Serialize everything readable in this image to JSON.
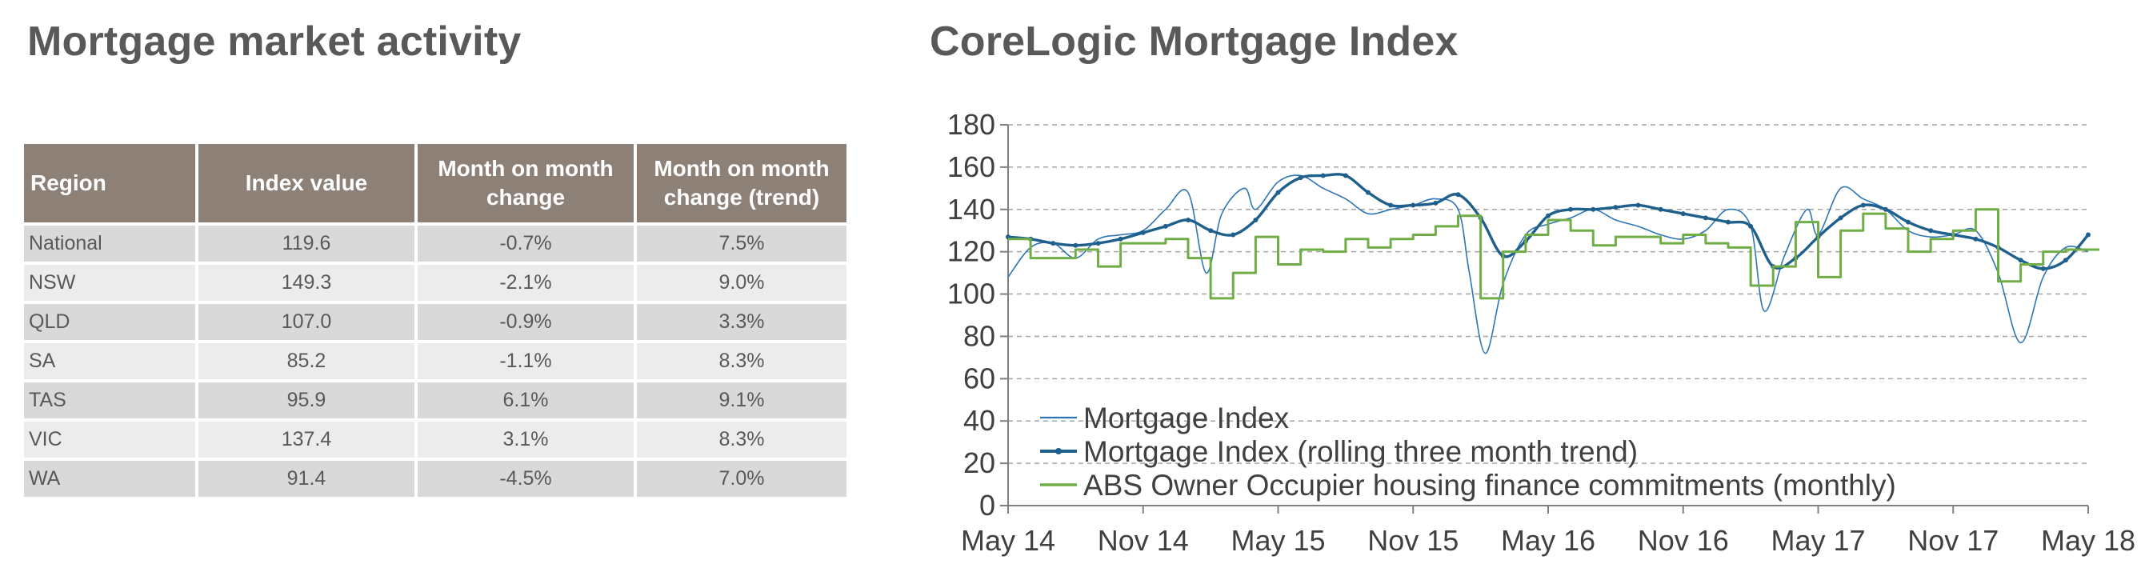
{
  "left_title": "Mortgage market activity",
  "right_title": "CoreLogic Mortgage Index",
  "colors": {
    "header_bg": "#8c8077",
    "row_dark": "#d9d9d9",
    "row_light": "#ececec",
    "title": "#595959",
    "series_index": "#2e75b6",
    "series_trend": "#1f5f8b",
    "series_abs": "#70ad47"
  },
  "table": {
    "headers": [
      "Region",
      "Index value",
      "Month on month change",
      "Month on month change (trend)"
    ],
    "rows": [
      {
        "region": "National",
        "index": "119.6",
        "mom": "-0.7%",
        "trend": "7.5%"
      },
      {
        "region": "NSW",
        "index": "149.3",
        "mom": "-2.1%",
        "trend": "9.0%"
      },
      {
        "region": "QLD",
        "index": "107.0",
        "mom": "-0.9%",
        "trend": "3.3%"
      },
      {
        "region": "SA",
        "index": "85.2",
        "mom": "-1.1%",
        "trend": "8.3%"
      },
      {
        "region": "TAS",
        "index": "95.9",
        "mom": "6.1%",
        "trend": "9.1%"
      },
      {
        "region": "VIC",
        "index": "137.4",
        "mom": "3.1%",
        "trend": "8.3%"
      },
      {
        "region": "WA",
        "index": "91.4",
        "mom": "-4.5%",
        "trend": "7.0%"
      }
    ]
  },
  "chart_data": {
    "type": "line",
    "title": "CoreLogic Mortgage Index",
    "x_tick_labels": [
      "May 14",
      "Nov 14",
      "May 15",
      "Nov 15",
      "May 16",
      "Nov 16",
      "May 17",
      "Nov 17",
      "May 18"
    ],
    "y_tick_labels": [
      "0",
      "20",
      "40",
      "60",
      "80",
      "100",
      "120",
      "140",
      "160",
      "180"
    ],
    "ylim": [
      0,
      180
    ],
    "xlim_months": [
      0,
      48
    ],
    "grid": "horizontal dashed",
    "legend_position": "bottom-left",
    "series": [
      {
        "name": "Mortgage Index",
        "points": [
          [
            0,
            108
          ],
          [
            1,
            122
          ],
          [
            2,
            124
          ],
          [
            3,
            117
          ],
          [
            4,
            126
          ],
          [
            5,
            128
          ],
          [
            6,
            130
          ],
          [
            7,
            140
          ],
          [
            8,
            148
          ],
          [
            8.8,
            110
          ],
          [
            9.5,
            138
          ],
          [
            10.5,
            150
          ],
          [
            11,
            140
          ],
          [
            12,
            153
          ],
          [
            13,
            156
          ],
          [
            14,
            150
          ],
          [
            15,
            145
          ],
          [
            16,
            138
          ],
          [
            17,
            140
          ],
          [
            18,
            142
          ],
          [
            19,
            145
          ],
          [
            20,
            140
          ],
          [
            20.5,
            110
          ],
          [
            21.2,
            72
          ],
          [
            22,
            105
          ],
          [
            23,
            128
          ],
          [
            24,
            133
          ],
          [
            25,
            136
          ],
          [
            26,
            140
          ],
          [
            27,
            135
          ],
          [
            28,
            132
          ],
          [
            29,
            128
          ],
          [
            30,
            126
          ],
          [
            31,
            130
          ],
          [
            32,
            140
          ],
          [
            33,
            132
          ],
          [
            33.6,
            92
          ],
          [
            34.5,
            118
          ],
          [
            35.5,
            140
          ],
          [
            36,
            128
          ],
          [
            37,
            150
          ],
          [
            38,
            145
          ],
          [
            39,
            140
          ],
          [
            40,
            130
          ],
          [
            41,
            127
          ],
          [
            42,
            128
          ],
          [
            43,
            130
          ],
          [
            44,
            110
          ],
          [
            45,
            77
          ],
          [
            46,
            108
          ],
          [
            47,
            122
          ],
          [
            48,
            120
          ]
        ]
      },
      {
        "name": "Mortgage Index (rolling three month trend)",
        "points": [
          [
            0,
            127
          ],
          [
            1,
            126
          ],
          [
            2,
            124
          ],
          [
            3,
            123
          ],
          [
            4,
            124
          ],
          [
            5,
            126
          ],
          [
            6,
            129
          ],
          [
            7,
            132
          ],
          [
            8,
            135
          ],
          [
            9,
            130
          ],
          [
            10,
            128
          ],
          [
            11,
            135
          ],
          [
            12,
            148
          ],
          [
            13,
            155
          ],
          [
            14,
            156
          ],
          [
            15,
            156
          ],
          [
            16,
            148
          ],
          [
            17,
            142
          ],
          [
            18,
            142
          ],
          [
            19,
            143
          ],
          [
            20,
            147
          ],
          [
            21,
            136
          ],
          [
            22,
            118
          ],
          [
            23,
            125
          ],
          [
            24,
            137
          ],
          [
            25,
            140
          ],
          [
            26,
            140
          ],
          [
            27,
            141
          ],
          [
            28,
            142
          ],
          [
            29,
            140
          ],
          [
            30,
            138
          ],
          [
            31,
            136
          ],
          [
            32,
            134
          ],
          [
            33,
            132
          ],
          [
            34,
            113
          ],
          [
            35,
            117
          ],
          [
            36,
            127
          ],
          [
            37,
            136
          ],
          [
            38,
            142
          ],
          [
            39,
            140
          ],
          [
            40,
            134
          ],
          [
            41,
            130
          ],
          [
            42,
            128
          ],
          [
            43,
            126
          ],
          [
            44,
            122
          ],
          [
            45,
            116
          ],
          [
            46,
            112
          ],
          [
            47,
            116
          ],
          [
            48,
            128
          ]
        ]
      },
      {
        "name": "ABS Owner Occupier housing finance commitments (monthly)",
        "points": [
          [
            0,
            126
          ],
          [
            1,
            117
          ],
          [
            2,
            117
          ],
          [
            3,
            121
          ],
          [
            4,
            113
          ],
          [
            5,
            124
          ],
          [
            6,
            124
          ],
          [
            7,
            126
          ],
          [
            8,
            117
          ],
          [
            9,
            98
          ],
          [
            10,
            110
          ],
          [
            11,
            127
          ],
          [
            12,
            114
          ],
          [
            13,
            121
          ],
          [
            14,
            120
          ],
          [
            15,
            126
          ],
          [
            16,
            122
          ],
          [
            17,
            126
          ],
          [
            18,
            128
          ],
          [
            19,
            132
          ],
          [
            20,
            137
          ],
          [
            21,
            98
          ],
          [
            22,
            120
          ],
          [
            23,
            128
          ],
          [
            24,
            135
          ],
          [
            25,
            130
          ],
          [
            26,
            123
          ],
          [
            27,
            127
          ],
          [
            28,
            127
          ],
          [
            29,
            124
          ],
          [
            30,
            128
          ],
          [
            31,
            124
          ],
          [
            32,
            122
          ],
          [
            33,
            104
          ],
          [
            34,
            113
          ],
          [
            35,
            134
          ],
          [
            36,
            108
          ],
          [
            37,
            130
          ],
          [
            38,
            138
          ],
          [
            39,
            131
          ],
          [
            40,
            120
          ],
          [
            41,
            126
          ],
          [
            42,
            130
          ],
          [
            43,
            140
          ],
          [
            44,
            106
          ],
          [
            45,
            114
          ],
          [
            46,
            120
          ],
          [
            47,
            121
          ],
          [
            48,
            121
          ]
        ]
      }
    ]
  }
}
